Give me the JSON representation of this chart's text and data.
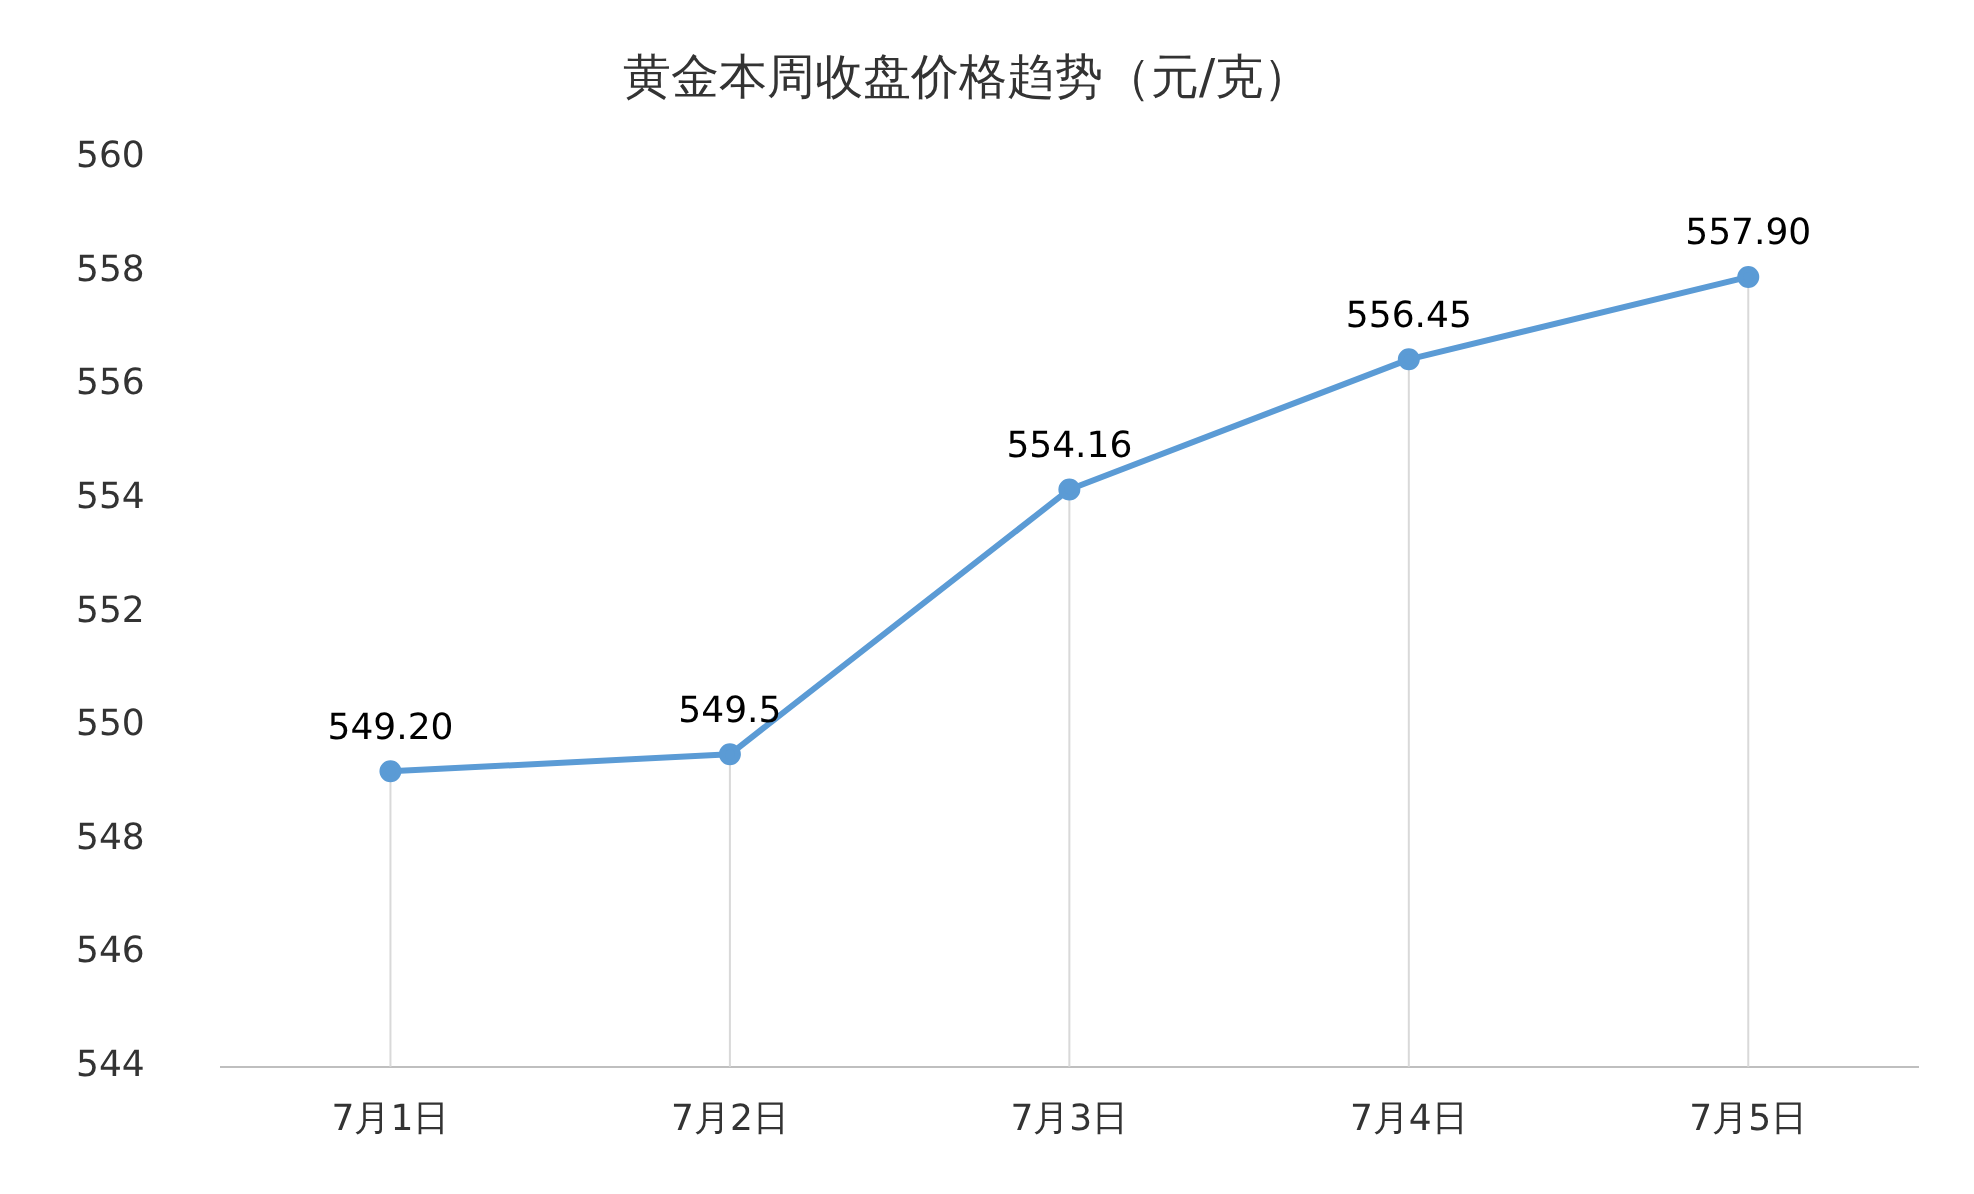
{
  "chart_data": {
    "type": "line",
    "title": "黄金本周收盘价格趋势（元/克）",
    "categories": [
      "7月1日",
      "7月2日",
      "7月3日",
      "7月4日",
      "7月5日"
    ],
    "series": [
      {
        "color": "#5b9bd5",
        "values": [
          549.2,
          549.5,
          554.16,
          556.45,
          557.9
        ],
        "value_labels": [
          "549.20",
          "549.5",
          "554.16",
          "556.45",
          "557.90"
        ]
      }
    ],
    "ylim": [
      544,
      560
    ],
    "yticks": [
      544,
      546,
      548,
      550,
      552,
      554,
      556,
      558,
      560
    ],
    "grid": "x",
    "legend": false,
    "marker": "circle",
    "line_style": "solid"
  }
}
